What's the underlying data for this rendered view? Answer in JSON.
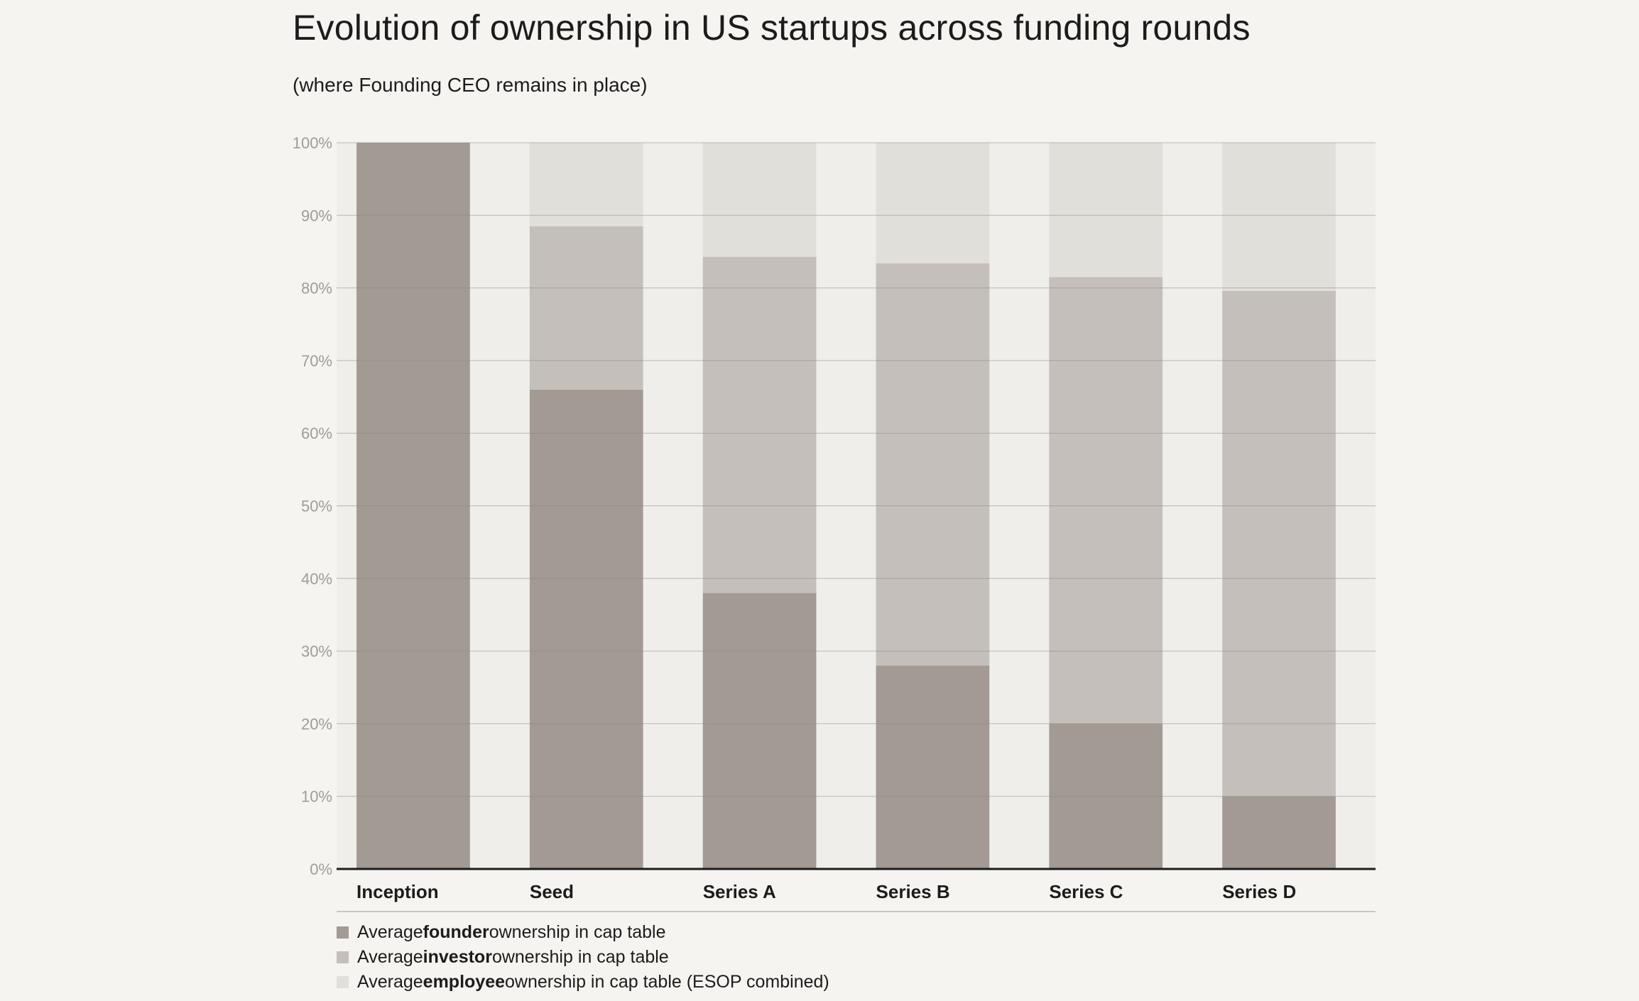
{
  "title": "Evolution of ownership in US startups across funding rounds",
  "subtitle": "(where Founding CEO remains in place)",
  "chart_data": {
    "type": "bar",
    "stacked": true,
    "categories": [
      "Inception",
      "Seed",
      "Series A",
      "Series B",
      "Series C",
      "Series D"
    ],
    "series": [
      {
        "name": "Average founder ownership in cap table",
        "color": "#a29a93",
        "values": [
          100,
          66,
          38,
          28,
          20,
          10
        ]
      },
      {
        "name": "Average investor ownership in cap table",
        "color": "#c4bfba",
        "values": [
          0,
          22.5,
          46.3,
          55.4,
          61.5,
          69.6
        ]
      },
      {
        "name": "Average employee ownership in cap table (ESOP combined)",
        "color": "#e1dfd9",
        "values": [
          0,
          11.5,
          15.7,
          16.6,
          18.5,
          20.4
        ]
      }
    ],
    "ylim": [
      0,
      100
    ],
    "yticks": [
      "0%",
      "10%",
      "20%",
      "30%",
      "40%",
      "50%",
      "60%",
      "70%",
      "80%",
      "90%",
      "100%"
    ],
    "grid": true,
    "legend_position": "bottom-left"
  },
  "legend": [
    {
      "prefix": "Average ",
      "strong": "founder",
      "suffix": " ownership in cap table",
      "color": "#a29a93"
    },
    {
      "prefix": "Average ",
      "strong": "investor",
      "suffix": " ownership in cap table",
      "color": "#c4bfba"
    },
    {
      "prefix": "Average ",
      "strong": "employee",
      "suffix": " ownership in cap table (ESOP combined)",
      "color": "#e1dfd9"
    }
  ]
}
